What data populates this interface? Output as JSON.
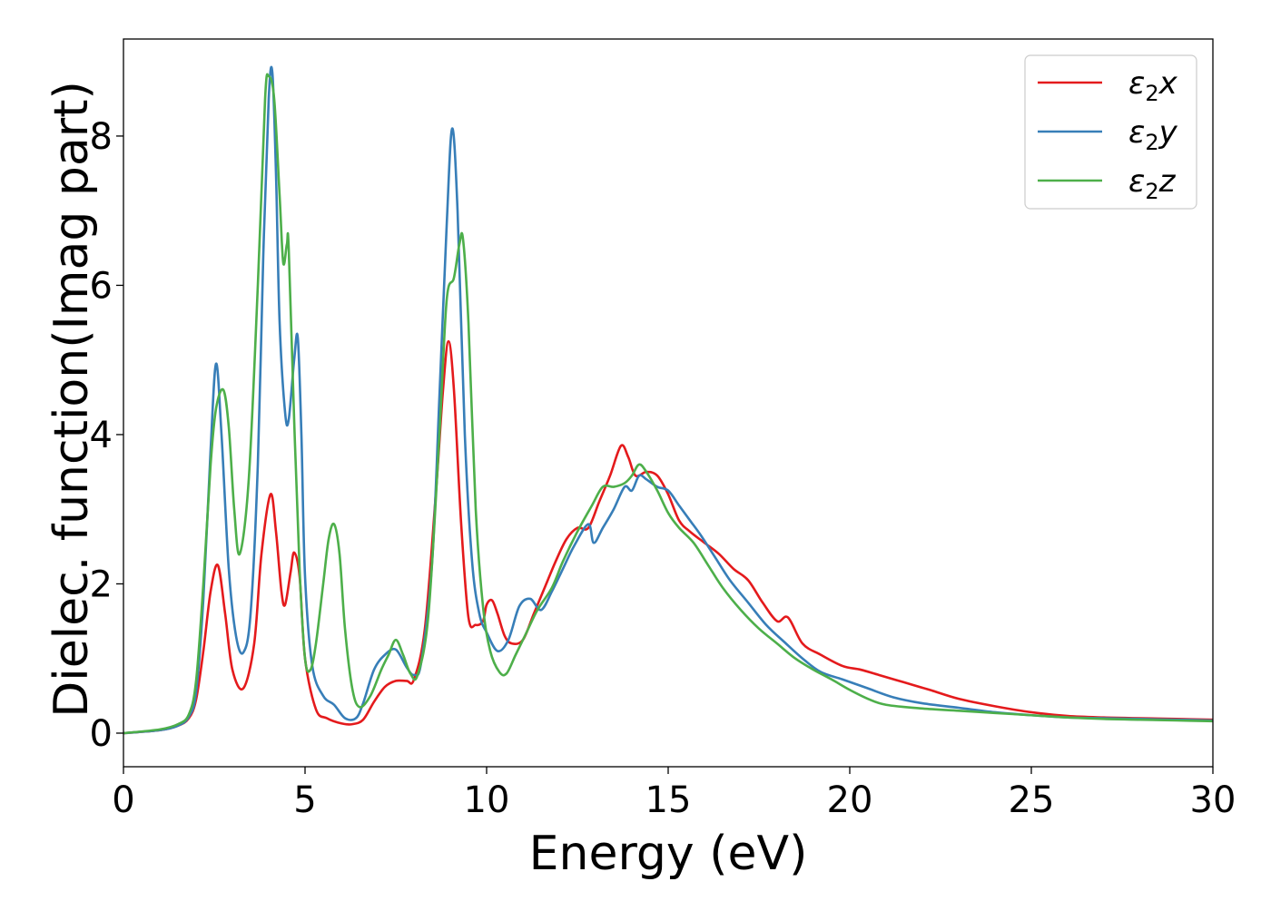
{
  "chart_data": {
    "type": "line",
    "title": "",
    "xlabel": "Energy (eV)",
    "ylabel": "Dielec. function(Imag part)",
    "xlim": [
      0,
      30
    ],
    "ylim": [
      -0.45,
      9.3
    ],
    "xticks": [
      0,
      5,
      10,
      15,
      20,
      25,
      30
    ],
    "yticks": [
      0,
      2,
      4,
      6,
      8
    ],
    "grid": false,
    "legend_position": "top-right",
    "series": [
      {
        "name": "ε₂x",
        "legend_base": "ε",
        "legend_sub": "2",
        "legend_suffix": "x",
        "color": "#e41a1c",
        "x": [
          0,
          1,
          1.5,
          1.8,
          2.0,
          2.2,
          2.4,
          2.6,
          2.8,
          3.0,
          3.3,
          3.6,
          3.8,
          4.05,
          4.2,
          4.35,
          4.45,
          4.6,
          4.7,
          4.85,
          5.0,
          5.3,
          5.6,
          6.0,
          6.3,
          6.6,
          6.9,
          7.2,
          7.5,
          7.8,
          8.0,
          8.3,
          8.6,
          8.8,
          8.95,
          9.1,
          9.3,
          9.5,
          9.7,
          9.9,
          10.0,
          10.15,
          10.3,
          10.5,
          10.7,
          11.0,
          11.3,
          11.6,
          11.9,
          12.2,
          12.5,
          12.8,
          13.1,
          13.4,
          13.7,
          13.9,
          14.1,
          14.4,
          14.7,
          15.0,
          15.3,
          15.6,
          16.0,
          16.4,
          16.8,
          17.2,
          17.6,
          18.0,
          18.3,
          18.7,
          19.2,
          19.8,
          20.3,
          20.8,
          21.5,
          22.2,
          23.0,
          24.0,
          25.0,
          26.0,
          27.0,
          28.0,
          29.0,
          30.0
        ],
        "y": [
          0,
          0.04,
          0.1,
          0.2,
          0.45,
          1.1,
          1.9,
          2.25,
          1.6,
          0.85,
          0.6,
          1.2,
          2.4,
          3.2,
          2.7,
          1.9,
          1.72,
          2.15,
          2.42,
          2.1,
          1.0,
          0.32,
          0.2,
          0.13,
          0.12,
          0.18,
          0.42,
          0.62,
          0.7,
          0.7,
          0.72,
          1.4,
          3.2,
          4.6,
          5.25,
          4.6,
          2.8,
          1.55,
          1.45,
          1.5,
          1.72,
          1.78,
          1.6,
          1.3,
          1.2,
          1.25,
          1.6,
          1.95,
          2.3,
          2.6,
          2.75,
          2.75,
          3.1,
          3.45,
          3.85,
          3.7,
          3.45,
          3.5,
          3.45,
          3.2,
          2.85,
          2.7,
          2.55,
          2.4,
          2.2,
          2.05,
          1.75,
          1.5,
          1.55,
          1.2,
          1.05,
          0.9,
          0.85,
          0.78,
          0.68,
          0.58,
          0.46,
          0.36,
          0.28,
          0.23,
          0.21,
          0.2,
          0.19,
          0.18
        ]
      },
      {
        "name": "ε₂y",
        "legend_base": "ε",
        "legend_sub": "2",
        "legend_suffix": "y",
        "color": "#377eb8",
        "x": [
          0,
          1,
          1.5,
          1.8,
          2.0,
          2.2,
          2.4,
          2.55,
          2.7,
          2.9,
          3.1,
          3.3,
          3.5,
          3.7,
          3.85,
          4.0,
          4.1,
          4.2,
          4.3,
          4.45,
          4.55,
          4.7,
          4.8,
          4.9,
          5.0,
          5.2,
          5.5,
          5.8,
          6.1,
          6.4,
          6.6,
          6.9,
          7.2,
          7.5,
          7.8,
          8.0,
          8.2,
          8.5,
          8.7,
          8.9,
          9.05,
          9.2,
          9.4,
          9.6,
          9.8,
          10.0,
          10.3,
          10.6,
          10.9,
          11.2,
          11.5,
          11.8,
          12.1,
          12.4,
          12.8,
          12.95,
          13.2,
          13.5,
          13.8,
          14.0,
          14.2,
          14.4,
          14.7,
          15.0,
          15.3,
          15.6,
          15.9,
          16.3,
          16.7,
          17.2,
          17.7,
          18.2,
          18.7,
          19.2,
          19.8,
          20.5,
          21.2,
          22.0,
          23.0,
          24.0,
          25.0,
          26.0,
          27.0,
          28.0,
          29.0,
          30.0
        ],
        "y": [
          0,
          0.04,
          0.1,
          0.22,
          0.55,
          1.8,
          3.8,
          4.95,
          4.0,
          2.2,
          1.3,
          1.08,
          1.6,
          3.6,
          6.4,
          8.5,
          8.85,
          7.5,
          5.5,
          4.3,
          4.2,
          5.0,
          5.3,
          4.0,
          2.1,
          0.9,
          0.5,
          0.38,
          0.2,
          0.2,
          0.4,
          0.85,
          1.05,
          1.12,
          0.88,
          0.78,
          0.95,
          2.3,
          4.5,
          6.8,
          8.1,
          7.0,
          4.0,
          2.3,
          1.6,
          1.35,
          1.1,
          1.25,
          1.7,
          1.8,
          1.65,
          1.9,
          2.2,
          2.5,
          2.8,
          2.55,
          2.75,
          3.0,
          3.3,
          3.25,
          3.45,
          3.4,
          3.3,
          3.25,
          3.05,
          2.85,
          2.65,
          2.35,
          2.05,
          1.75,
          1.45,
          1.22,
          1.0,
          0.82,
          0.72,
          0.6,
          0.48,
          0.4,
          0.34,
          0.28,
          0.24,
          0.21,
          0.2,
          0.19,
          0.18,
          0.17
        ]
      },
      {
        "name": "ε₂z",
        "legend_base": "ε",
        "legend_sub": "2",
        "legend_suffix": "z",
        "color": "#4daf4a",
        "x": [
          0,
          1,
          1.5,
          1.8,
          2.0,
          2.2,
          2.4,
          2.55,
          2.75,
          2.9,
          3.05,
          3.2,
          3.45,
          3.7,
          3.9,
          4.0,
          4.15,
          4.3,
          4.4,
          4.5,
          4.55,
          4.7,
          4.85,
          5.0,
          5.15,
          5.3,
          5.5,
          5.65,
          5.8,
          5.95,
          6.1,
          6.3,
          6.5,
          6.8,
          7.1,
          7.3,
          7.5,
          7.7,
          7.9,
          8.1,
          8.4,
          8.7,
          8.9,
          9.1,
          9.25,
          9.35,
          9.5,
          9.7,
          9.9,
          10.1,
          10.35,
          10.55,
          10.8,
          11.1,
          11.4,
          11.8,
          12.1,
          12.5,
          12.9,
          13.2,
          13.5,
          13.8,
          14.0,
          14.2,
          14.4,
          14.7,
          15.0,
          15.3,
          15.7,
          16.1,
          16.5,
          17.0,
          17.5,
          18.0,
          18.5,
          19.0,
          19.5,
          20.0,
          20.5,
          21.0,
          22.0,
          23.0,
          24.0,
          25.0,
          26.0,
          27.0,
          28.0,
          29.0,
          30.0
        ],
        "y": [
          0,
          0.05,
          0.12,
          0.25,
          0.7,
          2.0,
          3.6,
          4.35,
          4.6,
          4.1,
          3.0,
          2.4,
          3.4,
          6.0,
          8.5,
          8.8,
          8.5,
          7.2,
          6.3,
          6.55,
          6.5,
          4.2,
          2.2,
          1.0,
          0.85,
          1.2,
          2.0,
          2.6,
          2.8,
          2.4,
          1.4,
          0.6,
          0.35,
          0.5,
          0.85,
          1.05,
          1.25,
          1.05,
          0.8,
          0.78,
          1.6,
          4.0,
          5.8,
          6.1,
          6.55,
          6.62,
          5.5,
          3.0,
          1.7,
          1.1,
          0.82,
          0.8,
          1.05,
          1.35,
          1.65,
          1.95,
          2.3,
          2.7,
          3.05,
          3.3,
          3.3,
          3.35,
          3.45,
          3.6,
          3.5,
          3.25,
          2.95,
          2.75,
          2.55,
          2.25,
          1.95,
          1.65,
          1.4,
          1.2,
          1.0,
          0.85,
          0.72,
          0.58,
          0.46,
          0.38,
          0.33,
          0.3,
          0.27,
          0.24,
          0.21,
          0.19,
          0.18,
          0.17,
          0.16
        ]
      }
    ]
  }
}
